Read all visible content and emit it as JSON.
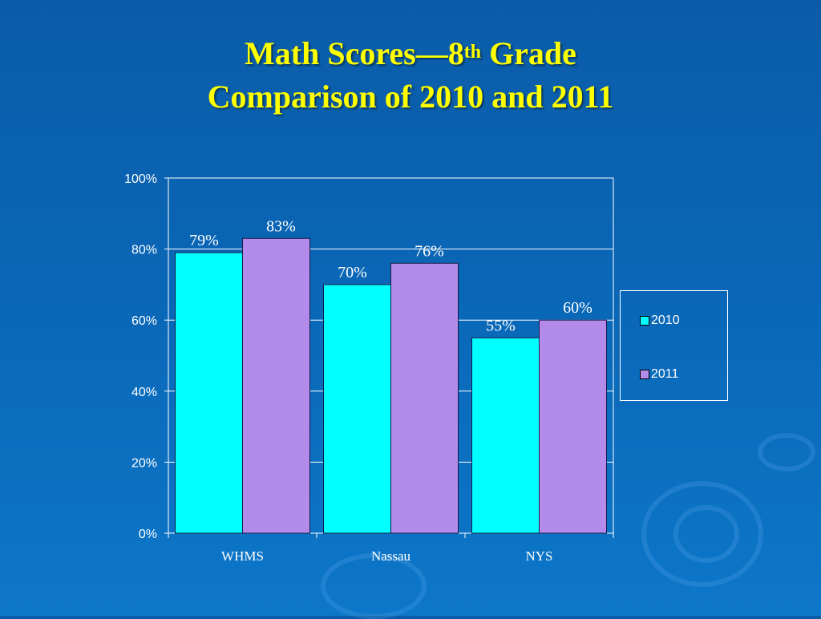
{
  "slide": {
    "title_line1_pre": "Math Scores—",
    "title_line1_num": "8",
    "title_line1_sup": "th",
    "title_line1_post": " Grade",
    "title_line2": "Comparison of 2010 and 2011"
  },
  "colors": {
    "background": "#0a66b6",
    "title": "#ffff00",
    "series_2010": "#00ffff",
    "series_2011": "#b38ceb"
  },
  "chart_data": {
    "type": "bar",
    "title": "Math Scores—8th Grade Comparison of 2010 and 2011",
    "categories": [
      "WHMS",
      "Nassau",
      "NYS"
    ],
    "series": [
      {
        "name": "2010",
        "values": [
          79,
          70,
          55
        ],
        "labels": [
          "79%",
          "70%",
          "55%"
        ],
        "color": "#00ffff"
      },
      {
        "name": "2011",
        "values": [
          83,
          76,
          60
        ],
        "labels": [
          "83%",
          "76%",
          "60%"
        ],
        "color": "#b38ceb"
      }
    ],
    "ylim": [
      0,
      100
    ],
    "yticks": [
      0,
      20,
      40,
      60,
      80,
      100
    ],
    "ytick_labels": [
      "0%",
      "20%",
      "40%",
      "60%",
      "80%",
      "100%"
    ],
    "xlabel": "",
    "ylabel": "",
    "grid": true,
    "legend": {
      "position": "right",
      "entries": [
        "2010",
        "2011"
      ]
    }
  }
}
